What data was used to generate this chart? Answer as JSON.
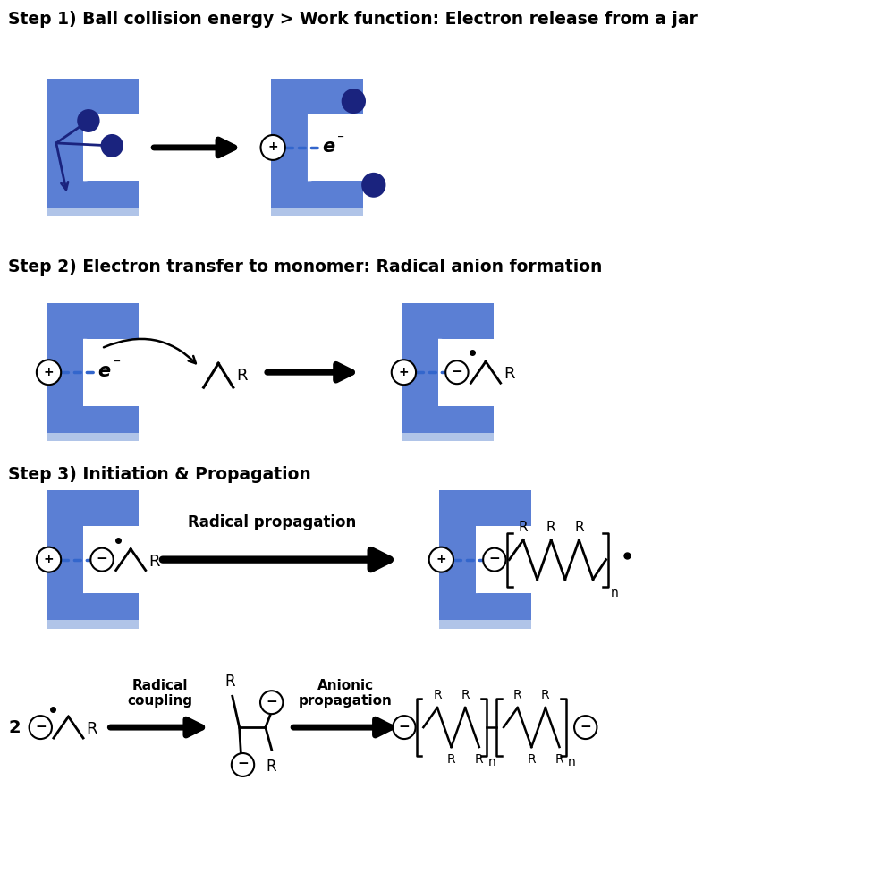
{
  "bg_color": "#ffffff",
  "blue_color": "#5B7FD4",
  "dark_blue": "#1a237e",
  "ball_color": "#1a237e",
  "step1_title": "Step 1) Ball collision energy > Work function: Electron release from a jar",
  "step2_title": "Step 2) Electron transfer to monomer: Radical anion formation",
  "step3_title": "Step 3) Initiation & Propagation",
  "radical_propagation": "Radical propagation",
  "radical_coupling": "Radical\ncoupling",
  "anionic_propagation": "Anionic\npropagation",
  "jar_blue": "#5B7FD4",
  "jar_shadow": "#b0c4e8"
}
